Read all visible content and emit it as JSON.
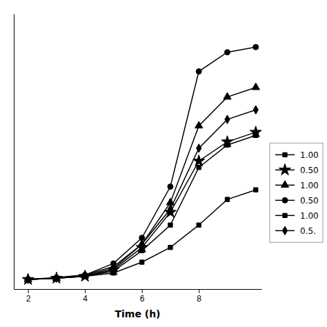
{
  "chart_data": {
    "type": "line",
    "xlabel": "Time (h)",
    "x": [
      2,
      3,
      4,
      5,
      6,
      7,
      8,
      9,
      10
    ],
    "series": [
      {
        "name": "1.00",
        "color": "#000000",
        "marker": "square",
        "line_style": "solid",
        "values": [
          0.05,
          0.07,
          0.1,
          0.15,
          0.32,
          0.55,
          0.9,
          1.3,
          1.45
        ]
      },
      {
        "name": "0.50",
        "color": "#000000",
        "marker": "star",
        "line_style": "solid",
        "values": [
          0.05,
          0.07,
          0.1,
          0.2,
          0.55,
          1.1,
          1.9,
          2.2,
          2.35
        ]
      },
      {
        "name": "1.00",
        "color": "#000000",
        "marker": "triangle",
        "line_style": "solid",
        "values": [
          0.05,
          0.07,
          0.11,
          0.22,
          0.6,
          1.25,
          2.45,
          2.9,
          3.05
        ]
      },
      {
        "name": "0.50",
        "color": "#000000",
        "marker": "circle",
        "line_style": "solid",
        "values": [
          0.05,
          0.08,
          0.12,
          0.3,
          0.7,
          1.5,
          3.3,
          3.6,
          3.68
        ]
      },
      {
        "name": "1.00",
        "color": "#000000",
        "marker": "square",
        "line_style": "solid",
        "values": [
          0.05,
          0.07,
          0.1,
          0.18,
          0.5,
          0.9,
          1.8,
          2.15,
          2.3
        ]
      },
      {
        "name": "0.5.",
        "color": "#000000",
        "marker": "diamond",
        "line_style": "solid",
        "values": [
          0.05,
          0.07,
          0.12,
          0.25,
          0.6,
          1.15,
          2.1,
          2.55,
          2.7
        ]
      }
    ],
    "xlim": [
      1.5,
      10.2
    ],
    "xticks": [
      2,
      4,
      6,
      8
    ],
    "ylim": [
      -0.1,
      4.2
    ],
    "tick_labels": "x",
    "grid": false,
    "legend": "right"
  }
}
